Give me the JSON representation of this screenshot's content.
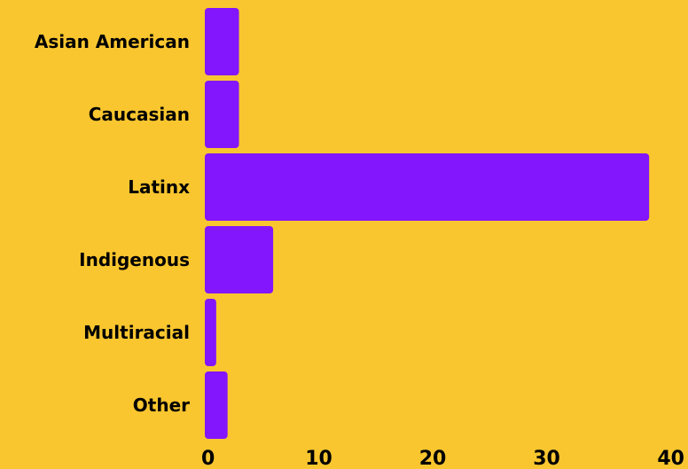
{
  "chart_data": {
    "type": "bar",
    "orientation": "horizontal",
    "title": "",
    "xlabel": "",
    "ylabel": "",
    "categories": [
      "Asian American",
      "Caucasian",
      "Latinx",
      "Indigenous",
      "Multiracial",
      "Other"
    ],
    "values": [
      3,
      3,
      39,
      6,
      1,
      2
    ],
    "xlim": [
      0,
      40
    ],
    "xticks": [
      0,
      10,
      20,
      30,
      40
    ],
    "grid": false,
    "legend": "none",
    "colors": {
      "background": "#F9C62F",
      "bar": "#8316FC",
      "text": "#000000"
    }
  }
}
